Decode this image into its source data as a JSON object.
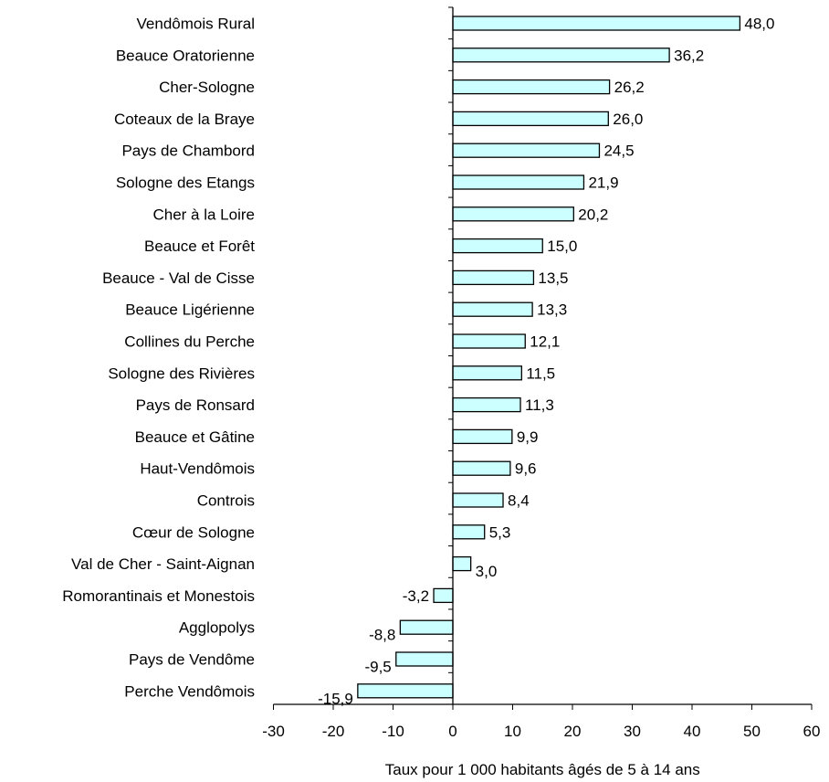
{
  "chart_data": {
    "type": "bar",
    "orientation": "horizontal",
    "categories": [
      "Vendômois Rural",
      "Beauce Oratorienne",
      "Cher-Sologne",
      "Coteaux de la Braye",
      "Pays de Chambord",
      "Sologne des Etangs",
      "Cher à la Loire",
      "Beauce et Forêt",
      "Beauce - Val de Cisse",
      "Beauce Ligérienne",
      "Collines du Perche",
      "Sologne des Rivières",
      "Pays de Ronsard",
      "Beauce et Gâtine",
      "Haut-Vendômois",
      "Controis",
      "Cœur de Sologne",
      "Val de Cher - Saint-Aignan",
      "Romorantinais et  Monestois",
      "Agglopolys",
      "Pays de Vendôme",
      "Perche Vendômois"
    ],
    "values": [
      48.0,
      36.2,
      26.2,
      26.0,
      24.5,
      21.9,
      20.2,
      15.0,
      13.5,
      13.3,
      12.1,
      11.5,
      11.3,
      9.9,
      9.6,
      8.4,
      5.3,
      3.0,
      -3.2,
      -8.8,
      -9.5,
      -15.9
    ],
    "value_labels": [
      "48,0",
      "36,2",
      "26,2",
      "26,0",
      "24,5",
      "21,9",
      "20,2",
      "15,0",
      "13,5",
      "13,3",
      "12,1",
      "11,5",
      "11,3",
      "9,9",
      "9,6",
      "8,4",
      "5,3",
      "3,0",
      "-3,2",
      "-8,8",
      "-9,5",
      "-15,9"
    ],
    "xlabel": "Taux pour 1 000 habitants âgés de 5 à 14 ans",
    "ylabel": "",
    "xlim": [
      -30,
      60
    ],
    "xticks": [
      -30,
      -20,
      -10,
      0,
      10,
      20,
      30,
      40,
      50,
      60
    ],
    "xtick_labels": [
      "-30",
      "-20",
      "-10",
      "0",
      "10",
      "20",
      "30",
      "40",
      "50",
      "60"
    ],
    "grid": false,
    "colors": {
      "bar_fill": "#ccffff",
      "bar_stroke": "#000000"
    }
  }
}
